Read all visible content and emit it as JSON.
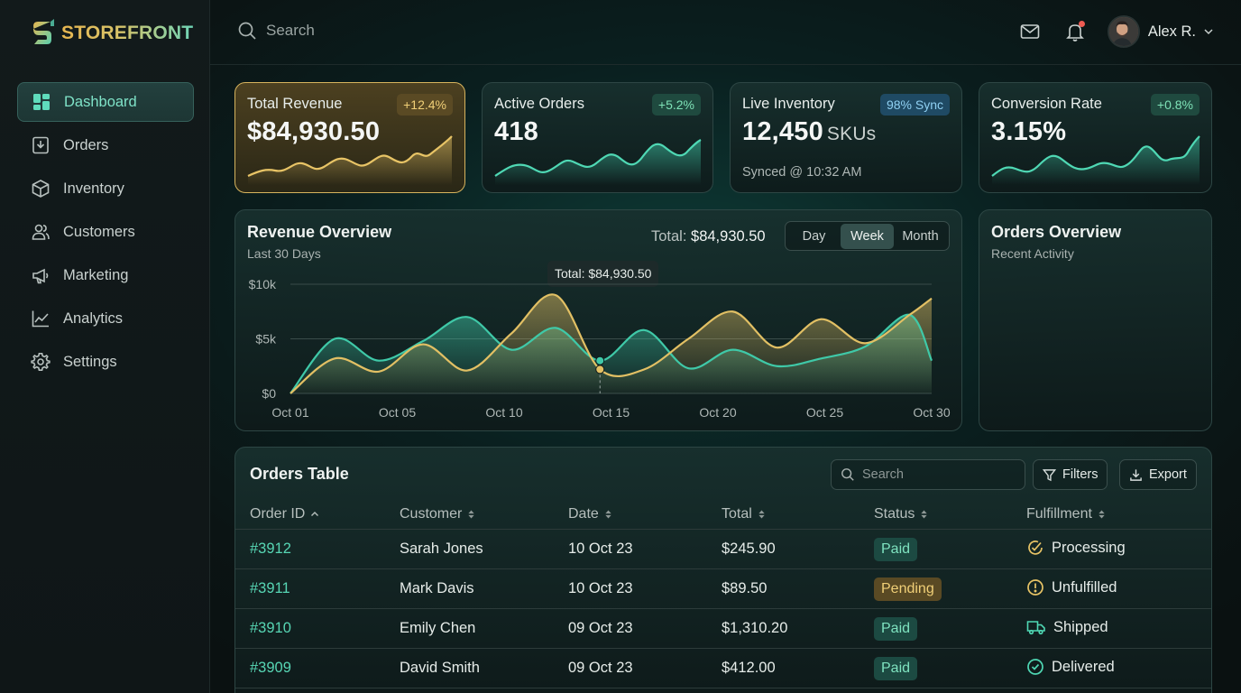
{
  "app": {
    "brand": "STOREFRONT"
  },
  "sidebar": {
    "items": [
      {
        "label": "Dashboard",
        "icon": "dashboard-icon",
        "active": true
      },
      {
        "label": "Orders",
        "icon": "orders-icon"
      },
      {
        "label": "Inventory",
        "icon": "inventory-icon"
      },
      {
        "label": "Customers",
        "icon": "customers-icon"
      },
      {
        "label": "Marketing",
        "icon": "megaphone-icon"
      },
      {
        "label": "Analytics",
        "icon": "analytics-icon"
      },
      {
        "label": "Settings",
        "icon": "gear-icon"
      }
    ]
  },
  "topbar": {
    "search_placeholder": "Search",
    "user_name": "Alex R."
  },
  "kpis": [
    {
      "title": "Total Revenue",
      "value": "$84,930.50",
      "badge": "+12.4%"
    },
    {
      "title": "Active Orders",
      "value": "418",
      "badge": "+5.2%"
    },
    {
      "title": "Live Inventory",
      "value": "12,450",
      "unit": "SKUs",
      "badge": "98% Sync",
      "sub": "Synced @ 10:32 AM"
    },
    {
      "title": "Conversion Rate",
      "value": "3.15%",
      "badge": "+0.8%"
    }
  ],
  "revenue_overview": {
    "title": "Revenue Overview",
    "subtitle": "Last 30 Days",
    "total_label": "Total:",
    "total_value": "$84,930.50",
    "ranges": [
      "Day",
      "Week",
      "Month"
    ],
    "selected_range": "Week",
    "tooltip": "Total: $84,930.50"
  },
  "chart_data": {
    "type": "area",
    "x": [
      1,
      3,
      5,
      7,
      9,
      11,
      13,
      15,
      17,
      19,
      21,
      23,
      25,
      27,
      29,
      30
    ],
    "x_ticks": [
      "Oct 01",
      "Oct 05",
      "Oct 10",
      "Oct 15",
      "Oct 20",
      "Oct 25",
      "Oct 30"
    ],
    "y_ticks": [
      "$0",
      "$5k",
      "$10k"
    ],
    "ylim": [
      0,
      10000
    ],
    "series": [
      {
        "color": "#3fc9a8",
        "values": [
          0,
          5000,
          3000,
          4800,
          7000,
          4000,
          6000,
          3000,
          5800,
          2300,
          4000,
          2500,
          3200,
          4300,
          7200,
          3000
        ]
      },
      {
        "color": "#e2c064",
        "values": [
          0,
          3200,
          2000,
          4500,
          2100,
          5500,
          9000,
          2200,
          2200,
          5000,
          7500,
          4200,
          6800,
          4600,
          7200,
          8700
        ]
      }
    ],
    "highlight_index": 7
  },
  "orders_overview": {
    "title": "Orders Overview",
    "subtitle": "Recent Activity"
  },
  "orders_table": {
    "title": "Orders Table",
    "search_placeholder": "Search",
    "filters_label": "Filters",
    "export_label": "Export",
    "columns": [
      "Order ID",
      "Customer",
      "Date",
      "Total",
      "Status",
      "Fulfillment"
    ],
    "rows": [
      {
        "id": "#3912",
        "customer": "Sarah Jones",
        "date": "10 Oct 23",
        "total": "$245.90",
        "status": "Paid",
        "fulfillment": "Processing"
      },
      {
        "id": "#3911",
        "customer": "Mark Davis",
        "date": "10 Oct 23",
        "total": "$89.50",
        "status": "Pending",
        "fulfillment": "Unfulfilled"
      },
      {
        "id": "#3910",
        "customer": "Emily Chen",
        "date": "09 Oct 23",
        "total": "$1,310.20",
        "status": "Paid",
        "fulfillment": "Shipped"
      },
      {
        "id": "#3909",
        "customer": "David Smith",
        "date": "09 Oct 23",
        "total": "$412.00",
        "status": "Paid",
        "fulfillment": "Delivered"
      }
    ]
  },
  "colors": {
    "accent": "#57d6b4",
    "gold": "#e2c064",
    "alert": "#ef5b52"
  }
}
